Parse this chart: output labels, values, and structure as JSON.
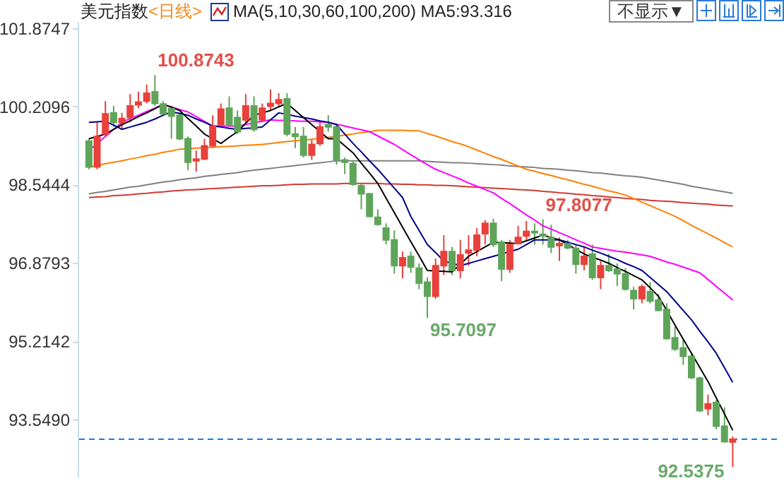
{
  "chart_data": {
    "type": "candlestick",
    "title": "美元指数",
    "subtitle": "<日线>",
    "categories": [
      null,
      null,
      null,
      null,
      null,
      null,
      null,
      null,
      null,
      null,
      null,
      null,
      null,
      null,
      null,
      null,
      null,
      null,
      null,
      null,
      null,
      null,
      null,
      null,
      null,
      null,
      null,
      null,
      null,
      null,
      null,
      null,
      null,
      null,
      null,
      null,
      null,
      null,
      null,
      null,
      null,
      null,
      null,
      null,
      null,
      null,
      null,
      null,
      null,
      null,
      null,
      null,
      null,
      null,
      null,
      null,
      null,
      null,
      null,
      null,
      null,
      null,
      null,
      null,
      null,
      null,
      null,
      null,
      null,
      null,
      null,
      null,
      null,
      null,
      null,
      null,
      null,
      null,
      null
    ],
    "ohlc": [
      [
        99.47,
        99.52,
        98.87,
        98.92
      ],
      [
        98.92,
        99.87,
        98.87,
        99.57
      ],
      [
        99.62,
        100.32,
        99.57,
        100.05
      ],
      [
        100.07,
        100.22,
        99.77,
        99.87
      ],
      [
        99.87,
        100.07,
        99.72,
        99.95
      ],
      [
        99.97,
        100.47,
        99.87,
        100.22
      ],
      [
        100.24,
        100.52,
        100.17,
        100.3
      ],
      [
        100.32,
        100.67,
        100.27,
        100.49
      ],
      [
        100.52,
        100.8743,
        100.22,
        100.27
      ],
      [
        100.26,
        100.32,
        100.02,
        100.05
      ],
      [
        100.16,
        100.22,
        99.52,
        100.0
      ],
      [
        100.02,
        100.07,
        99.49,
        99.52
      ],
      [
        99.52,
        99.57,
        98.85,
        99.02
      ],
      [
        99.05,
        99.27,
        98.82,
        99.09
      ],
      [
        99.09,
        99.52,
        99.07,
        99.37
      ],
      [
        99.37,
        100.02,
        99.32,
        99.79
      ],
      [
        99.82,
        100.27,
        99.77,
        100.15
      ],
      [
        100.17,
        100.42,
        99.77,
        99.82
      ],
      [
        99.97,
        100.12,
        99.62,
        99.67
      ],
      [
        99.92,
        100.47,
        99.87,
        100.22
      ],
      [
        100.22,
        100.42,
        99.67,
        99.72
      ],
      [
        99.92,
        100.27,
        99.87,
        100.17
      ],
      [
        100.21,
        100.57,
        100.12,
        100.27
      ],
      [
        100.27,
        100.49,
        100.22,
        100.35
      ],
      [
        100.37,
        100.49,
        99.57,
        99.62
      ],
      [
        99.62,
        99.77,
        99.32,
        99.57
      ],
      [
        99.57,
        99.77,
        99.12,
        99.17
      ],
      [
        99.17,
        99.52,
        99.07,
        99.4
      ],
      [
        99.42,
        99.87,
        99.37,
        99.77
      ],
      [
        99.82,
        100.02,
        99.67,
        99.77
      ],
      [
        99.77,
        99.82,
        98.97,
        99.07
      ],
      [
        99.07,
        99.12,
        98.77,
        99.02
      ],
      [
        98.99,
        99.05,
        98.52,
        98.55
      ],
      [
        98.52,
        98.57,
        98.02,
        98.35
      ],
      [
        98.35,
        98.37,
        97.85,
        97.87
      ],
      [
        97.85,
        98.02,
        97.67,
        97.7
      ],
      [
        97.62,
        97.72,
        97.27,
        97.37
      ],
      [
        97.37,
        97.57,
        96.65,
        96.82
      ],
      [
        96.82,
        97.12,
        96.55,
        96.99
      ],
      [
        97.02,
        97.12,
        96.67,
        96.79
      ],
      [
        96.77,
        96.87,
        96.32,
        96.45
      ],
      [
        96.47,
        96.57,
        95.7097,
        96.17
      ],
      [
        96.17,
        96.97,
        96.12,
        96.82
      ],
      [
        96.82,
        97.47,
        96.62,
        97.12
      ],
      [
        97.12,
        97.22,
        96.62,
        96.72
      ],
      [
        96.72,
        97.37,
        96.55,
        97.05
      ],
      [
        97.09,
        97.47,
        96.82,
        97.15
      ],
      [
        97.15,
        97.62,
        97.02,
        97.47
      ],
      [
        97.5,
        97.79,
        97.27,
        97.72
      ],
      [
        97.72,
        97.82,
        97.22,
        97.27
      ],
      [
        97.32,
        97.37,
        96.49,
        96.75
      ],
      [
        96.75,
        97.37,
        96.67,
        97.27
      ],
      [
        97.29,
        97.67,
        97.27,
        97.42
      ],
      [
        97.45,
        97.77,
        97.37,
        97.55
      ],
      [
        97.55,
        97.72,
        97.27,
        97.52
      ],
      [
        97.49,
        97.8077,
        97.27,
        97.45
      ],
      [
        97.42,
        97.69,
        97.09,
        97.22
      ],
      [
        97.25,
        97.42,
        96.92,
        97.29
      ],
      [
        97.29,
        97.37,
        97.17,
        97.2
      ],
      [
        97.19,
        97.27,
        96.65,
        96.85
      ],
      [
        96.85,
        97.22,
        96.72,
        97.02
      ],
      [
        97.07,
        97.27,
        96.52,
        96.57
      ],
      [
        96.57,
        96.92,
        96.32,
        96.82
      ],
      [
        96.82,
        97.07,
        96.69,
        96.72
      ],
      [
        96.75,
        96.87,
        96.39,
        96.65
      ],
      [
        96.65,
        96.77,
        96.29,
        96.32
      ],
      [
        96.29,
        96.37,
        95.89,
        96.12
      ],
      [
        96.12,
        96.42,
        96.02,
        96.37
      ],
      [
        96.27,
        96.47,
        96.02,
        96.07
      ],
      [
        96.09,
        96.22,
        95.85,
        95.87
      ],
      [
        95.89,
        96.02,
        95.25,
        95.27
      ],
      [
        95.29,
        95.52,
        95.01,
        95.05
      ],
      [
        95.07,
        95.27,
        94.71,
        94.89
      ],
      [
        94.89,
        94.96,
        94.41,
        94.44
      ],
      [
        94.43,
        94.46,
        93.71,
        93.74
      ],
      [
        93.78,
        94.08,
        93.64,
        93.88
      ],
      [
        93.91,
        93.96,
        93.34,
        93.41
      ],
      [
        93.41,
        93.81,
        93.06,
        93.08
      ],
      [
        93.07,
        93.19,
        92.5375,
        93.13
      ]
    ],
    "colors": [
      "#5ea55a",
      "#e8413c",
      "#e8413c",
      "#5ea55a",
      "#e8413c",
      "#e8413c",
      "#e8413c",
      "#e8413c",
      "#5ea55a",
      "#5ea55a",
      "#5ea55a",
      "#5ea55a",
      "#5ea55a",
      "#e8413c",
      "#e8413c",
      "#e8413c",
      "#e8413c",
      "#5ea55a",
      "#5ea55a",
      "#e8413c",
      "#5ea55a",
      "#e8413c",
      "#e8413c",
      "#e8413c",
      "#5ea55a",
      "#5ea55a",
      "#5ea55a",
      "#e8413c",
      "#e8413c",
      "#5ea55a",
      "#5ea55a",
      "#5ea55a",
      "#5ea55a",
      "#5ea55a",
      "#5ea55a",
      "#5ea55a",
      "#5ea55a",
      "#5ea55a",
      "#e8413c",
      "#5ea55a",
      "#5ea55a",
      "#5ea55a",
      "#e8413c",
      "#e8413c",
      "#5ea55a",
      "#e8413c",
      "#e8413c",
      "#e8413c",
      "#e8413c",
      "#5ea55a",
      "#5ea55a",
      "#e8413c",
      "#e8413c",
      "#e8413c",
      "#5ea55a",
      "#5ea55a",
      "#5ea55a",
      "#e8413c",
      "#5ea55a",
      "#5ea55a",
      "#e8413c",
      "#5ea55a",
      "#e8413c",
      "#5ea55a",
      "#5ea55a",
      "#5ea55a",
      "#5ea55a",
      "#e8413c",
      "#5ea55a",
      "#5ea55a",
      "#5ea55a",
      "#5ea55a",
      "#5ea55a",
      "#5ea55a",
      "#5ea55a",
      "#e8413c",
      "#5ea55a",
      "#5ea55a",
      "#e8413c"
    ],
    "series": [
      {
        "type": "line",
        "color": "#d23a32",
        "values": [
          98.27,
          98.28,
          98.29,
          98.31,
          98.32,
          98.33,
          98.35,
          98.36,
          98.38,
          98.39,
          98.41,
          98.42,
          98.43,
          98.44,
          98.45,
          98.46,
          98.47,
          98.48,
          98.49,
          98.5,
          98.51,
          98.52,
          98.52,
          98.53,
          98.54,
          98.55,
          98.55,
          98.56,
          98.56,
          98.56,
          98.56,
          98.57,
          98.57,
          98.57,
          98.57,
          98.57,
          98.56,
          98.56,
          98.55,
          98.55,
          98.54,
          98.54,
          98.53,
          98.53,
          98.52,
          98.51,
          98.5,
          98.49,
          98.48,
          98.47,
          98.46,
          98.45,
          98.44,
          98.43,
          98.42,
          98.4,
          98.39,
          98.37,
          98.36,
          98.34,
          98.33,
          98.31,
          98.3,
          98.28,
          98.27,
          98.25,
          98.24,
          98.23,
          98.21,
          98.2,
          98.19,
          98.18,
          98.16,
          98.15,
          98.14,
          98.13,
          98.11,
          98.1,
          98.09
        ]
      },
      {
        "type": "line",
        "color": "#808080",
        "values": [
          98.35,
          98.38,
          98.4,
          98.43,
          98.46,
          98.49,
          98.51,
          98.54,
          98.57,
          98.6,
          98.62,
          98.65,
          98.67,
          98.69,
          98.72,
          98.74,
          98.76,
          98.78,
          98.8,
          98.83,
          98.85,
          98.87,
          98.89,
          98.91,
          98.93,
          98.95,
          98.97,
          98.99,
          99.01,
          99.03,
          99.05,
          99.05,
          99.05,
          99.05,
          99.05,
          99.05,
          99.05,
          99.05,
          99.05,
          99.05,
          99.05,
          99.04,
          99.03,
          99.02,
          99.01,
          99.01,
          99.0,
          98.99,
          98.98,
          98.97,
          98.96,
          98.94,
          98.93,
          98.92,
          98.91,
          98.89,
          98.88,
          98.87,
          98.85,
          98.84,
          98.82,
          98.8,
          98.79,
          98.77,
          98.75,
          98.73,
          98.72,
          98.7,
          98.67,
          98.64,
          98.61,
          98.58,
          98.55,
          98.51,
          98.48,
          98.45,
          98.42,
          98.39,
          98.36
        ]
      },
      {
        "type": "line",
        "color": "#ff8000",
        "values": [
          98.92,
          98.95,
          98.99,
          99.02,
          99.05,
          99.09,
          99.12,
          99.16,
          99.19,
          99.23,
          99.26,
          99.3,
          99.31,
          99.32,
          99.33,
          99.34,
          99.35,
          99.36,
          99.37,
          99.38,
          99.39,
          99.4,
          99.42,
          99.44,
          99.46,
          99.48,
          99.49,
          99.51,
          99.53,
          99.55,
          99.57,
          99.6,
          99.62,
          99.65,
          99.67,
          99.7,
          99.7,
          99.7,
          99.7,
          99.69,
          99.69,
          99.63,
          99.58,
          99.52,
          99.46,
          99.41,
          99.35,
          99.28,
          99.21,
          99.14,
          99.08,
          99.01,
          98.94,
          98.87,
          98.83,
          98.78,
          98.74,
          98.69,
          98.65,
          98.6,
          98.55,
          98.51,
          98.46,
          98.41,
          98.37,
          98.32,
          98.25,
          98.17,
          98.1,
          98.02,
          97.95,
          97.87,
          97.78,
          97.68,
          97.59,
          97.5,
          97.41,
          97.31,
          97.22
        ]
      },
      {
        "type": "line",
        "color": "#ff00ff",
        "values": [
          99.27,
          99.42,
          99.57,
          99.72,
          99.87,
          99.95,
          100.02,
          100.1,
          100.17,
          100.25,
          100.2,
          100.14,
          100.09,
          99.99,
          99.89,
          99.79,
          99.79,
          99.79,
          99.79,
          99.82,
          99.86,
          99.89,
          99.92,
          99.91,
          99.91,
          99.9,
          99.89,
          99.89,
          99.88,
          99.87,
          99.83,
          99.79,
          99.75,
          99.71,
          99.67,
          99.58,
          99.49,
          99.4,
          99.29,
          99.18,
          99.07,
          98.97,
          98.87,
          98.8,
          98.73,
          98.66,
          98.58,
          98.51,
          98.44,
          98.37,
          98.25,
          98.14,
          98.02,
          97.9,
          97.79,
          97.67,
          97.6,
          97.52,
          97.45,
          97.37,
          97.3,
          97.22,
          97.19,
          97.16,
          97.13,
          97.11,
          97.08,
          97.05,
          97.02,
          96.96,
          96.9,
          96.85,
          96.79,
          96.73,
          96.67,
          96.53,
          96.38,
          96.24,
          96.09
        ]
      },
      {
        "type": "line",
        "color": "#00008b",
        "values": [
          99.87,
          99.88,
          99.89,
          99.81,
          99.72,
          99.77,
          99.82,
          99.87,
          99.94,
          100.02,
          100.09,
          100.06,
          100.02,
          99.94,
          99.87,
          99.79,
          99.77,
          99.74,
          99.72,
          99.74,
          99.75,
          99.77,
          99.92,
          100.07,
          100.04,
          100.0,
          99.97,
          99.94,
          99.9,
          99.87,
          99.82,
          99.62,
          99.42,
          99.24,
          99.05,
          98.87,
          98.67,
          98.47,
          98.27,
          97.87,
          97.57,
          97.27,
          97.1,
          96.92,
          96.87,
          96.82,
          96.87,
          96.92,
          96.97,
          97.02,
          97.07,
          97.12,
          97.17,
          97.27,
          97.37,
          97.37,
          97.37,
          97.37,
          97.32,
          97.27,
          97.22,
          97.15,
          97.09,
          97.02,
          96.95,
          96.87,
          96.8,
          96.72,
          96.57,
          96.42,
          96.27,
          96.07,
          95.87,
          95.67,
          95.43,
          95.2,
          94.96,
          94.65,
          94.34
        ]
      },
      {
        "type": "line",
        "color": "#000000",
        "values": [
          99.52,
          99.57,
          99.62,
          99.72,
          99.82,
          99.9,
          99.99,
          100.07,
          100.16,
          100.25,
          100.19,
          100.12,
          99.95,
          99.79,
          99.62,
          99.52,
          99.42,
          99.55,
          99.67,
          99.85,
          100.02,
          100.07,
          100.12,
          100.2,
          100.27,
          100.12,
          99.97,
          99.82,
          99.67,
          99.52,
          99.52,
          99.37,
          99.22,
          99.0,
          98.79,
          98.57,
          98.26,
          97.95,
          97.64,
          97.33,
          97.03,
          96.72,
          96.71,
          96.7,
          96.69,
          96.85,
          97.02,
          97.12,
          97.22,
          97.32,
          97.31,
          97.3,
          97.29,
          97.35,
          97.41,
          97.47,
          97.42,
          97.37,
          97.27,
          97.17,
          97.07,
          97.0,
          96.94,
          96.87,
          96.78,
          96.7,
          96.61,
          96.52,
          96.35,
          96.17,
          95.87,
          95.56,
          95.26,
          94.96,
          94.66,
          94.36,
          94.01,
          93.67,
          93.32
        ]
      }
    ],
    "ylim": [
      92.32,
      102.02
    ],
    "yticks": [
      101.8747,
      100.2096,
      98.5444,
      96.8793,
      95.2142,
      {
        "value": 93.549,
        "label": "93.5490"
      }
    ],
    "tick_labels": "y",
    "ref_lines": [
      {
        "axis": "y",
        "value": 93.13,
        "color": "#1e7be0",
        "line_style": "dashed"
      }
    ],
    "annotations": [
      "MA(5,10,30,60,100,200)  MA5:93.316",
      "不显示▼",
      "100.8743",
      "97.8077",
      "95.7097",
      "92.5375"
    ]
  }
}
